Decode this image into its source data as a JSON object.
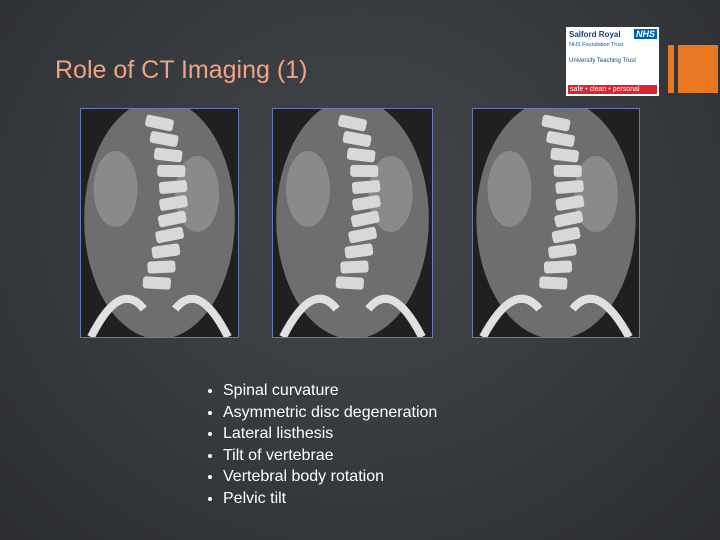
{
  "header": {
    "title": "Role of CT Imaging (1)"
  },
  "logo": {
    "name": "Salford Royal",
    "nhs": "NHS",
    "trust": "NHS Foundation Trust",
    "university": "University Teaching Trust",
    "motto": "safe • clean • personal"
  },
  "bullets": [
    "Spinal curvature",
    "Asymmetric disc degeneration",
    "Lateral listhesis",
    "Tilt of vertebrae",
    "Vertebral body rotation",
    "Pelvic tilt"
  ]
}
